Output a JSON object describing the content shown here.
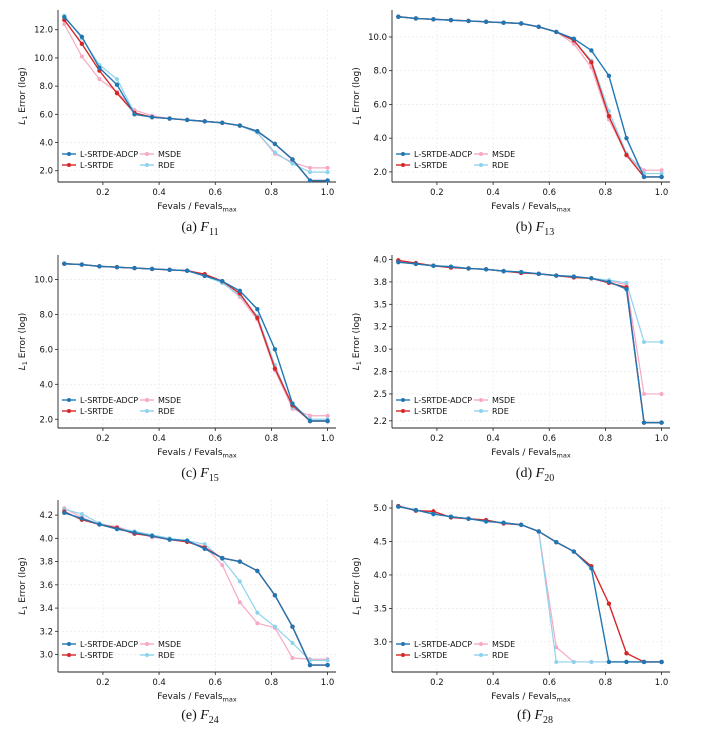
{
  "figure": {
    "xlabel": "Fevals / Fevals",
    "xlabel_sub": "max",
    "ylabel": "L",
    "ylabel_sub": "1",
    "ylabel_rest": " Error (log)",
    "colors": {
      "L-SRTDE-ADCP": "#1f77b4",
      "L-SRTDE": "#d62728",
      "MSDE": "#f7a8c4",
      "RDE": "#8ed3ec"
    }
  },
  "chart_data": [
    {
      "id": "a",
      "caption_letter": "(a)",
      "function": "F",
      "function_sub": "11",
      "type": "line",
      "xlim": [
        0.04,
        1.03
      ],
      "ylim": [
        1.2,
        13.4
      ],
      "xticks": [
        "0.2",
        "0.4",
        "0.6",
        "0.8",
        "1.0"
      ],
      "xtick_values": [
        0.2,
        0.4,
        0.6,
        0.8,
        1.0
      ],
      "yticks": [
        "2.0",
        "4.0",
        "6.0",
        "8.0",
        "10.0",
        "12.0"
      ],
      "ytick_values": [
        2,
        4,
        6,
        8,
        10,
        12
      ],
      "legend": [
        "L-SRTDE-ADCP",
        "L-SRTDE",
        "MSDE",
        "RDE"
      ],
      "x": [
        0.0625,
        0.125,
        0.1875,
        0.25,
        0.3125,
        0.375,
        0.4375,
        0.5,
        0.5625,
        0.625,
        0.6875,
        0.75,
        0.8125,
        0.875,
        0.9375,
        1.0
      ],
      "series": [
        {
          "name": "L-SRTDE-ADCP",
          "values": [
            12.9,
            11.5,
            9.3,
            8.1,
            6.0,
            5.8,
            5.7,
            5.6,
            5.5,
            5.4,
            5.2,
            4.8,
            3.9,
            2.8,
            1.3,
            1.3
          ]
        },
        {
          "name": "L-SRTDE",
          "values": [
            12.7,
            11.0,
            9.1,
            7.5,
            6.1,
            5.8,
            5.7,
            5.6,
            5.5,
            5.4,
            5.2,
            4.8,
            3.9,
            2.8,
            1.3,
            1.3
          ]
        },
        {
          "name": "MSDE",
          "values": [
            12.4,
            10.1,
            8.5,
            7.6,
            6.3,
            5.9,
            5.7,
            5.6,
            5.5,
            5.4,
            5.2,
            4.7,
            3.2,
            2.6,
            2.2,
            2.2
          ]
        },
        {
          "name": "RDE",
          "values": [
            13.0,
            11.4,
            9.5,
            8.5,
            6.1,
            5.8,
            5.7,
            5.6,
            5.5,
            5.4,
            5.2,
            4.7,
            3.3,
            2.5,
            1.9,
            1.9
          ]
        }
      ]
    },
    {
      "id": "b",
      "caption_letter": "(b)",
      "function": "F",
      "function_sub": "13",
      "type": "line",
      "xlim": [
        0.04,
        1.03
      ],
      "ylim": [
        1.4,
        11.6
      ],
      "xticks": [
        "0.2",
        "0.4",
        "0.6",
        "0.8",
        "1.0"
      ],
      "xtick_values": [
        0.2,
        0.4,
        0.6,
        0.8,
        1.0
      ],
      "yticks": [
        "2.0",
        "4.0",
        "6.0",
        "8.0",
        "10.0"
      ],
      "ytick_values": [
        2,
        4,
        6,
        8,
        10
      ],
      "legend": [
        "L-SRTDE-ADCP",
        "L-SRTDE",
        "MSDE",
        "RDE"
      ],
      "x": [
        0.0625,
        0.125,
        0.1875,
        0.25,
        0.3125,
        0.375,
        0.4375,
        0.5,
        0.5625,
        0.625,
        0.6875,
        0.75,
        0.8125,
        0.875,
        0.9375,
        1.0
      ],
      "series": [
        {
          "name": "L-SRTDE-ADCP",
          "values": [
            11.2,
            11.1,
            11.05,
            11.0,
            10.95,
            10.9,
            10.85,
            10.8,
            10.6,
            10.3,
            9.9,
            9.2,
            7.7,
            4.0,
            1.7,
            1.7
          ]
        },
        {
          "name": "L-SRTDE",
          "values": [
            11.2,
            11.1,
            11.05,
            11.0,
            10.95,
            10.9,
            10.85,
            10.8,
            10.6,
            10.3,
            9.8,
            8.5,
            5.3,
            3.0,
            1.7,
            1.7
          ]
        },
        {
          "name": "MSDE",
          "values": [
            11.2,
            11.1,
            11.05,
            11.0,
            10.95,
            10.9,
            10.85,
            10.8,
            10.6,
            10.3,
            9.6,
            8.2,
            5.1,
            3.0,
            2.1,
            2.1
          ]
        },
        {
          "name": "RDE",
          "values": [
            11.2,
            11.1,
            11.05,
            11.0,
            10.95,
            10.9,
            10.85,
            10.8,
            10.6,
            10.3,
            9.8,
            8.6,
            5.6,
            3.1,
            1.9,
            1.9
          ]
        }
      ]
    },
    {
      "id": "c",
      "caption_letter": "(c)",
      "function": "F",
      "function_sub": "15",
      "type": "line",
      "xlim": [
        0.04,
        1.03
      ],
      "ylim": [
        1.5,
        11.4
      ],
      "xticks": [
        "0.2",
        "0.4",
        "0.6",
        "0.8",
        "1.0"
      ],
      "xtick_values": [
        0.2,
        0.4,
        0.6,
        0.8,
        1.0
      ],
      "yticks": [
        "2.0",
        "4.0",
        "6.0",
        "8.0",
        "10.0"
      ],
      "ytick_values": [
        2,
        4,
        6,
        8,
        10
      ],
      "legend": [
        "L-SRTDE-ADCP",
        "L-SRTDE",
        "MSDE",
        "RDE"
      ],
      "x": [
        0.0625,
        0.125,
        0.1875,
        0.25,
        0.3125,
        0.375,
        0.4375,
        0.5,
        0.5625,
        0.625,
        0.6875,
        0.75,
        0.8125,
        0.875,
        0.9375,
        1.0
      ],
      "series": [
        {
          "name": "L-SRTDE-ADCP",
          "values": [
            10.9,
            10.85,
            10.75,
            10.7,
            10.65,
            10.6,
            10.55,
            10.5,
            10.2,
            9.9,
            9.35,
            8.3,
            6.0,
            2.9,
            1.9,
            1.9
          ]
        },
        {
          "name": "L-SRTDE",
          "values": [
            10.9,
            10.85,
            10.75,
            10.7,
            10.65,
            10.6,
            10.55,
            10.5,
            10.3,
            9.9,
            9.2,
            7.8,
            4.9,
            2.8,
            1.9,
            1.9
          ]
        },
        {
          "name": "MSDE",
          "values": [
            10.9,
            10.85,
            10.75,
            10.7,
            10.65,
            10.6,
            10.55,
            10.5,
            10.25,
            9.85,
            9.0,
            7.7,
            4.8,
            2.6,
            2.2,
            2.2
          ]
        },
        {
          "name": "RDE",
          "values": [
            10.9,
            10.85,
            10.75,
            10.7,
            10.65,
            10.6,
            10.55,
            10.5,
            10.2,
            9.8,
            9.1,
            7.9,
            5.1,
            2.7,
            2.0,
            2.0
          ]
        }
      ]
    },
    {
      "id": "d",
      "caption_letter": "(d)",
      "function": "F",
      "function_sub": "20",
      "type": "line",
      "xlim": [
        0.04,
        1.03
      ],
      "ylim": [
        2.12,
        4.05
      ],
      "xticks": [
        "0.2",
        "0.4",
        "0.6",
        "0.8",
        "1.0"
      ],
      "xtick_values": [
        0.2,
        0.4,
        0.6,
        0.8,
        1.0
      ],
      "yticks": [
        "2.2",
        "2.5",
        "2.8",
        "3.0",
        "3.2",
        "3.5",
        "3.8",
        "4.0"
      ],
      "ytick_values": [
        2.2,
        2.5,
        2.75,
        3.0,
        3.25,
        3.5,
        3.75,
        4.0
      ],
      "legend": [
        "L-SRTDE-ADCP",
        "L-SRTDE",
        "MSDE",
        "RDE"
      ],
      "x": [
        0.0625,
        0.125,
        0.1875,
        0.25,
        0.3125,
        0.375,
        0.4375,
        0.5,
        0.5625,
        0.625,
        0.6875,
        0.75,
        0.8125,
        0.875,
        0.9375,
        1.0
      ],
      "series": [
        {
          "name": "L-SRTDE-ADCP",
          "values": [
            3.97,
            3.95,
            3.93,
            3.92,
            3.9,
            3.89,
            3.87,
            3.86,
            3.84,
            3.82,
            3.81,
            3.79,
            3.75,
            3.67,
            2.18,
            2.18
          ]
        },
        {
          "name": "L-SRTDE",
          "values": [
            3.99,
            3.96,
            3.93,
            3.91,
            3.9,
            3.89,
            3.87,
            3.85,
            3.84,
            3.82,
            3.8,
            3.79,
            3.74,
            3.69,
            2.18,
            2.18
          ]
        },
        {
          "name": "MSDE",
          "values": [
            3.98,
            3.95,
            3.93,
            3.91,
            3.9,
            3.89,
            3.87,
            3.86,
            3.84,
            3.82,
            3.8,
            3.79,
            3.76,
            3.72,
            2.5,
            2.5
          ]
        },
        {
          "name": "RDE",
          "values": [
            3.97,
            3.95,
            3.93,
            3.92,
            3.9,
            3.89,
            3.87,
            3.86,
            3.84,
            3.82,
            3.81,
            3.79,
            3.77,
            3.74,
            3.08,
            3.08
          ]
        }
      ]
    },
    {
      "id": "e",
      "caption_letter": "(e)",
      "function": "F",
      "function_sub": "24",
      "type": "line",
      "xlim": [
        0.04,
        1.03
      ],
      "ylim": [
        2.85,
        4.33
      ],
      "xticks": [
        "0.2",
        "0.4",
        "0.6",
        "0.8",
        "1.0"
      ],
      "xtick_values": [
        0.2,
        0.4,
        0.6,
        0.8,
        1.0
      ],
      "yticks": [
        "3.0",
        "3.2",
        "3.4",
        "3.6",
        "3.8",
        "4.0",
        "4.2"
      ],
      "ytick_values": [
        3.0,
        3.2,
        3.4,
        3.6,
        3.8,
        4.0,
        4.2
      ],
      "legend": [
        "L-SRTDE-ADCP",
        "L-SRTDE",
        "MSDE",
        "RDE"
      ],
      "x": [
        0.0625,
        0.125,
        0.1875,
        0.25,
        0.3125,
        0.375,
        0.4375,
        0.5,
        0.5625,
        0.625,
        0.6875,
        0.75,
        0.8125,
        0.875,
        0.9375,
        1.0
      ],
      "series": [
        {
          "name": "L-SRTDE-ADCP",
          "values": [
            4.22,
            4.17,
            4.12,
            4.08,
            4.05,
            4.02,
            3.99,
            3.98,
            3.91,
            3.83,
            3.8,
            3.72,
            3.51,
            3.24,
            2.91,
            2.91
          ]
        },
        {
          "name": "L-SRTDE",
          "values": [
            4.23,
            4.16,
            4.12,
            4.09,
            4.04,
            4.02,
            3.99,
            3.97,
            3.92,
            3.83,
            3.8,
            3.72,
            3.51,
            3.24,
            2.91,
            2.91
          ]
        },
        {
          "name": "MSDE",
          "values": [
            4.26,
            4.18,
            4.12,
            4.1,
            4.05,
            4.01,
            3.99,
            3.97,
            3.93,
            3.77,
            3.45,
            3.27,
            3.23,
            2.97,
            2.96,
            2.96
          ]
        },
        {
          "name": "RDE",
          "values": [
            4.25,
            4.21,
            4.13,
            4.09,
            4.06,
            4.03,
            4.0,
            3.98,
            3.95,
            3.82,
            3.63,
            3.36,
            3.24,
            3.1,
            2.95,
            2.95
          ]
        }
      ]
    },
    {
      "id": "f",
      "caption_letter": "(f)",
      "function": "F",
      "function_sub": "28",
      "type": "line",
      "xlim": [
        0.04,
        1.03
      ],
      "ylim": [
        2.55,
        5.12
      ],
      "xticks": [
        "0.2",
        "0.4",
        "0.6",
        "0.8",
        "1.0"
      ],
      "xtick_values": [
        0.2,
        0.4,
        0.6,
        0.8,
        1.0
      ],
      "yticks": [
        "3.0",
        "3.5",
        "4.0",
        "4.5",
        "5.0"
      ],
      "ytick_values": [
        3.0,
        3.5,
        4.0,
        4.5,
        5.0
      ],
      "legend": [
        "L-SRTDE-ADCP",
        "L-SRTDE",
        "MSDE",
        "RDE"
      ],
      "x": [
        0.0625,
        0.125,
        0.1875,
        0.25,
        0.3125,
        0.375,
        0.4375,
        0.5,
        0.5625,
        0.625,
        0.6875,
        0.75,
        0.8125,
        0.875,
        0.9375,
        1.0
      ],
      "series": [
        {
          "name": "L-SRTDE-ADCP",
          "values": [
            5.02,
            4.97,
            4.91,
            4.87,
            4.84,
            4.8,
            4.78,
            4.75,
            4.65,
            4.49,
            4.35,
            4.1,
            2.7,
            2.7,
            2.7,
            2.7
          ]
        },
        {
          "name": "L-SRTDE",
          "values": [
            5.03,
            4.96,
            4.95,
            4.86,
            4.84,
            4.82,
            4.77,
            4.75,
            4.65,
            4.49,
            4.35,
            4.13,
            3.57,
            2.83,
            2.7,
            2.7
          ]
        },
        {
          "name": "MSDE",
          "values": [
            5.03,
            4.97,
            4.93,
            4.87,
            4.84,
            4.81,
            4.77,
            4.75,
            4.65,
            2.92,
            2.7,
            2.7,
            2.7,
            2.7,
            2.7,
            2.7
          ]
        },
        {
          "name": "RDE",
          "values": [
            5.03,
            4.97,
            4.92,
            4.87,
            4.84,
            4.81,
            4.77,
            4.75,
            4.65,
            2.7,
            2.7,
            2.7,
            2.7,
            2.7,
            2.7,
            2.7
          ]
        }
      ]
    }
  ]
}
